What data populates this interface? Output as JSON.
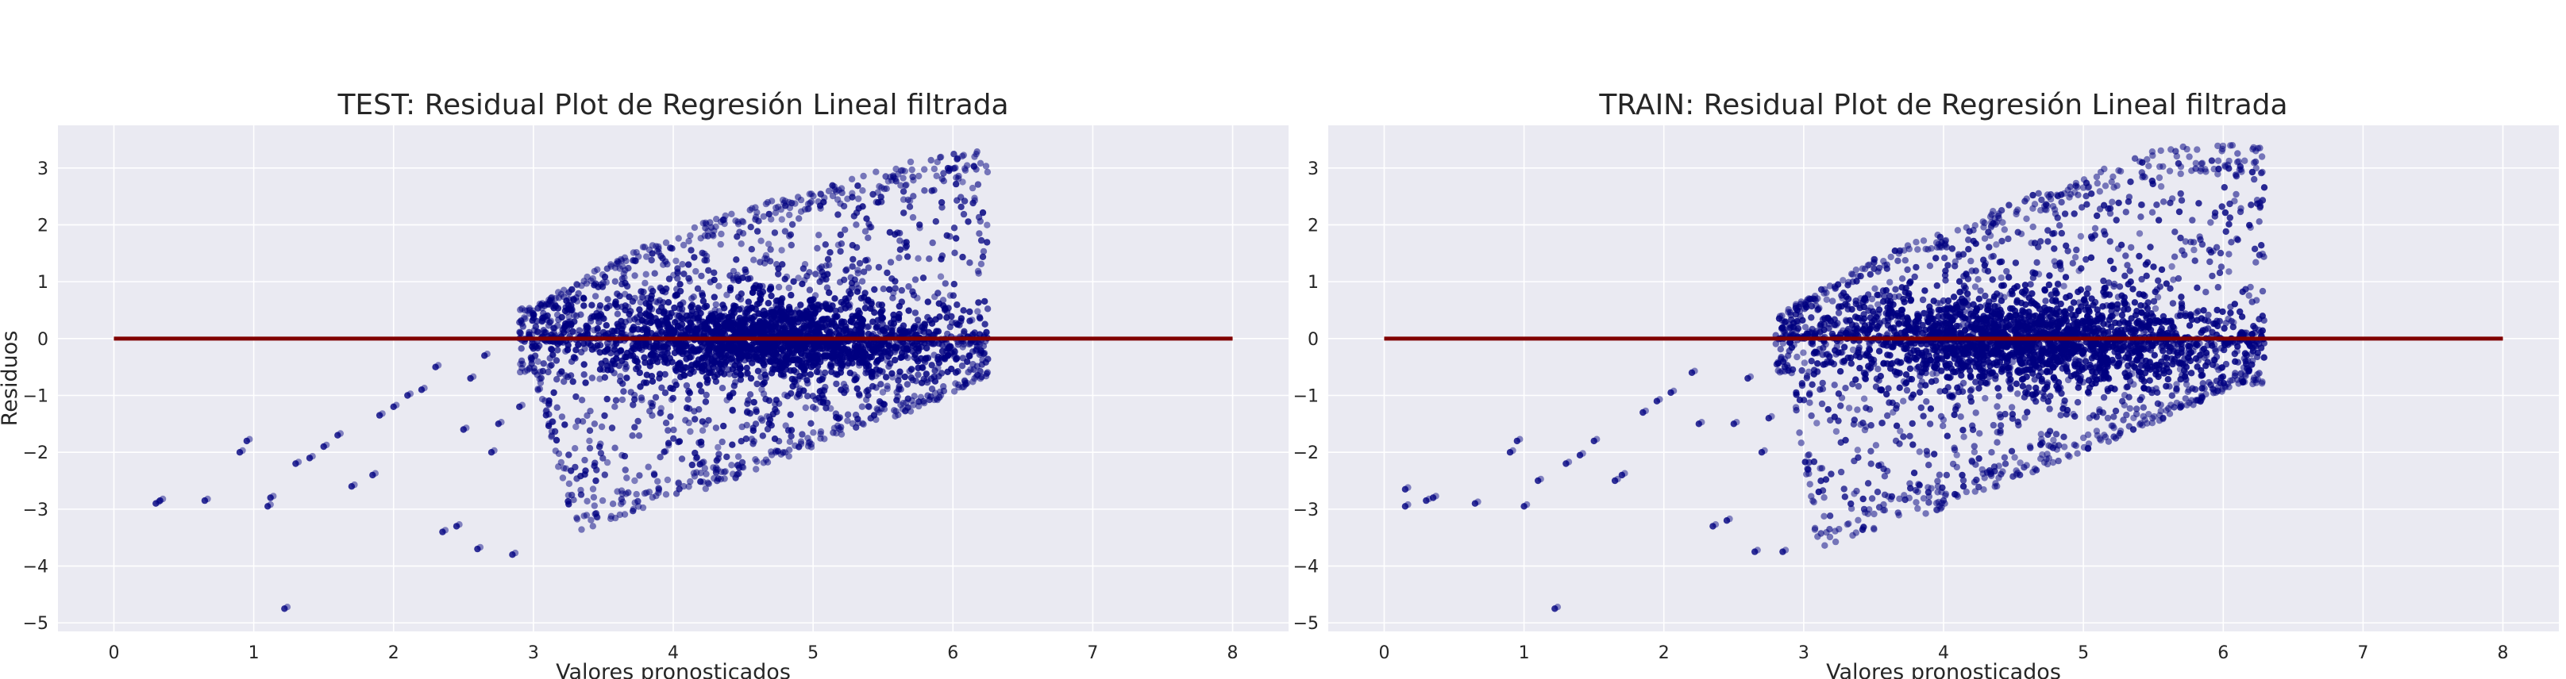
{
  "colors": {
    "background": "#eaeaf2",
    "grid": "#ffffff",
    "points": "#000080",
    "zero_line": "#800000",
    "text": "#262626"
  },
  "chart_data": [
    {
      "type": "scatter",
      "title": "TEST: Residual Plot de Regresión Lineal filtrada",
      "xlabel": "Valores pronosticados",
      "ylabel": "Residuos",
      "xlim": [
        -0.4,
        8.4
      ],
      "ylim": [
        -5.15,
        3.75
      ],
      "xticks": [
        0,
        1,
        2,
        3,
        4,
        5,
        6,
        7,
        8
      ],
      "yticks": [
        -5,
        -4,
        -3,
        -2,
        -1,
        0,
        1,
        2,
        3
      ],
      "grid": true,
      "legend": "none",
      "zero_line": {
        "y": 0,
        "x": [
          0,
          8
        ]
      },
      "cloud": {
        "x_range": [
          2.9,
          6.25
        ],
        "center_x": 4.7,
        "core_half_width": 1.1,
        "core_half_height": 0.62
      },
      "upper_edge": [
        [
          3.0,
          0.55
        ],
        [
          3.5,
          1.3
        ],
        [
          4.0,
          1.85
        ],
        [
          4.5,
          2.3
        ],
        [
          5.0,
          2.6
        ],
        [
          5.5,
          3.0
        ],
        [
          5.8,
          3.3
        ]
      ],
      "lower_edge": [
        [
          3.0,
          -0.6
        ],
        [
          3.3,
          -3.4
        ],
        [
          3.8,
          -3.0
        ],
        [
          4.3,
          -2.6
        ],
        [
          4.8,
          -2.1
        ],
        [
          5.3,
          -1.6
        ],
        [
          5.8,
          -1.2
        ],
        [
          6.2,
          -0.7
        ]
      ],
      "outliers": [
        [
          0.3,
          -2.9
        ],
        [
          0.33,
          -2.85
        ],
        [
          0.65,
          -2.85
        ],
        [
          0.9,
          -2.0
        ],
        [
          0.95,
          -1.8
        ],
        [
          1.1,
          -2.95
        ],
        [
          1.12,
          -2.8
        ],
        [
          1.22,
          -4.75
        ],
        [
          1.3,
          -2.2
        ],
        [
          1.4,
          -2.1
        ],
        [
          1.5,
          -1.9
        ],
        [
          1.6,
          -1.7
        ],
        [
          1.7,
          -2.6
        ],
        [
          1.85,
          -2.4
        ],
        [
          1.9,
          -1.35
        ],
        [
          2.0,
          -1.2
        ],
        [
          2.1,
          -1.0
        ],
        [
          2.2,
          -0.9
        ],
        [
          2.3,
          -0.5
        ],
        [
          2.35,
          -3.4
        ],
        [
          2.45,
          -3.3
        ],
        [
          2.5,
          -1.6
        ],
        [
          2.55,
          -0.7
        ],
        [
          2.6,
          -3.7
        ],
        [
          2.65,
          -0.3
        ],
        [
          2.7,
          -2.0
        ],
        [
          2.75,
          -1.5
        ],
        [
          2.85,
          -3.8
        ],
        [
          2.9,
          -1.2
        ]
      ]
    },
    {
      "type": "scatter",
      "title": "TRAIN: Residual Plot de Regresión Lineal filtrada",
      "xlabel": "Valores pronosticados",
      "ylabel": "",
      "xlim": [
        -0.4,
        8.4
      ],
      "ylim": [
        -5.15,
        3.75
      ],
      "xticks": [
        0,
        1,
        2,
        3,
        4,
        5,
        6,
        7,
        8
      ],
      "yticks": [
        -5,
        -4,
        -3,
        -2,
        -1,
        0,
        1,
        2,
        3
      ],
      "grid": true,
      "legend": "none",
      "zero_line": {
        "y": 0,
        "x": [
          0,
          8
        ]
      },
      "cloud": {
        "x_range": [
          2.8,
          6.3
        ],
        "center_x": 4.6,
        "core_half_width": 1.2,
        "core_half_height": 0.66
      },
      "upper_edge": [
        [
          2.8,
          0.4
        ],
        [
          3.5,
          1.4
        ],
        [
          4.0,
          1.9
        ],
        [
          4.5,
          2.4
        ],
        [
          5.0,
          2.85
        ],
        [
          5.5,
          3.3
        ],
        [
          5.7,
          3.4
        ]
      ],
      "lower_edge": [
        [
          2.9,
          -0.6
        ],
        [
          3.1,
          -3.7
        ],
        [
          3.6,
          -3.3
        ],
        [
          4.1,
          -2.9
        ],
        [
          4.6,
          -2.4
        ],
        [
          5.1,
          -1.9
        ],
        [
          5.6,
          -1.4
        ],
        [
          6.1,
          -0.8
        ]
      ],
      "outliers": [
        [
          0.15,
          -2.65
        ],
        [
          0.15,
          -2.95
        ],
        [
          0.3,
          -2.85
        ],
        [
          0.35,
          -2.8
        ],
        [
          0.65,
          -2.9
        ],
        [
          0.9,
          -2.0
        ],
        [
          0.95,
          -1.8
        ],
        [
          1.0,
          -2.95
        ],
        [
          1.1,
          -2.5
        ],
        [
          1.22,
          -4.75
        ],
        [
          1.3,
          -2.2
        ],
        [
          1.4,
          -2.05
        ],
        [
          1.5,
          -1.8
        ],
        [
          1.65,
          -2.5
        ],
        [
          1.7,
          -2.4
        ],
        [
          1.85,
          -1.3
        ],
        [
          1.95,
          -1.1
        ],
        [
          2.05,
          -0.95
        ],
        [
          2.2,
          -0.6
        ],
        [
          2.25,
          -1.5
        ],
        [
          2.35,
          -3.3
        ],
        [
          2.45,
          -3.2
        ],
        [
          2.5,
          -1.5
        ],
        [
          2.6,
          -0.7
        ],
        [
          2.65,
          -3.75
        ],
        [
          2.7,
          -2.0
        ],
        [
          2.75,
          -1.4
        ],
        [
          2.85,
          -3.75
        ]
      ]
    }
  ]
}
